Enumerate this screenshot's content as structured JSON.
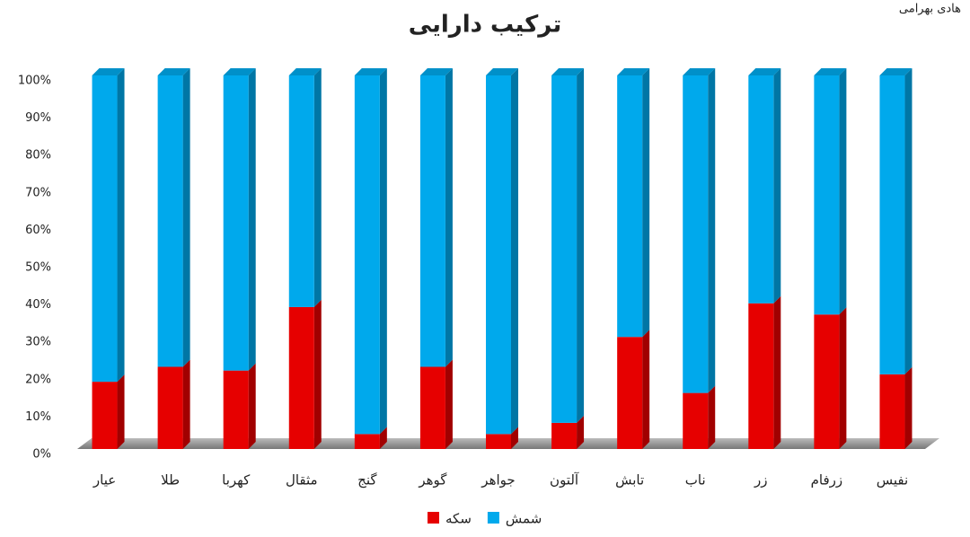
{
  "chart_data": {
    "type": "stacked_bar_3d",
    "title": "ترکیب دارایی",
    "author": "هادی بهرامی",
    "categories": [
      "عیار",
      "طلا",
      "کهربا",
      "مثقال",
      "گنج",
      "گوهر",
      "جواهر",
      "آلتون",
      "تابش",
      "ناب",
      "زر",
      "زرفام",
      "نفیس"
    ],
    "series": [
      {
        "name": "سکه",
        "color": "#e60000",
        "values": [
          18,
          22,
          21,
          38,
          4,
          22,
          4,
          7,
          30,
          15,
          39,
          36,
          20
        ]
      },
      {
        "name": "شمش",
        "color": "#00a9ec",
        "values": [
          82,
          78,
          79,
          62,
          96,
          78,
          96,
          93,
          70,
          85,
          61,
          64,
          80
        ]
      }
    ],
    "ylim": [
      0,
      100
    ],
    "yticks": [
      {
        "value": 0,
        "label": "0%"
      },
      {
        "value": 10,
        "label": "10%"
      },
      {
        "value": 20,
        "label": "20%"
      },
      {
        "value": 30,
        "label": "30%"
      },
      {
        "value": 40,
        "label": "40%"
      },
      {
        "value": 50,
        "label": "50%"
      },
      {
        "value": 60,
        "label": "60%"
      },
      {
        "value": 70,
        "label": "70%"
      },
      {
        "value": 80,
        "label": "80%"
      },
      {
        "value": 90,
        "label": "90%"
      },
      {
        "value": 100,
        "label": "100%"
      }
    ],
    "legend": "bottom"
  }
}
